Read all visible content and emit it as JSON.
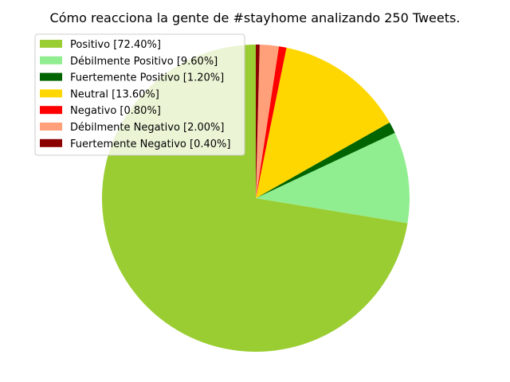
{
  "chart_data": {
    "type": "pie",
    "title": "Cómo reacciona la gente de #stayhome analizando 250 Tweets.",
    "legend_position": "top-left",
    "slices": [
      {
        "label": "Positivo [72.40%]",
        "value": 72.4,
        "color": "#9acd32"
      },
      {
        "label": "Débilmente Positivo [9.60%]",
        "value": 9.6,
        "color": "#90ee90"
      },
      {
        "label": "Fuertemente Positivo [1.20%]",
        "value": 1.2,
        "color": "#006400"
      },
      {
        "label": "Neutral [13.60%]",
        "value": 13.6,
        "color": "#ffd700"
      },
      {
        "label": "Negativo [0.80%]",
        "value": 0.8,
        "color": "#ff0000"
      },
      {
        "label": "Débilmente Negativo [2.00%]",
        "value": 2.0,
        "color": "#ffa07a"
      },
      {
        "label": "Fuertemente Negativo [0.40%]",
        "value": 0.4,
        "color": "#8b0000"
      }
    ]
  }
}
